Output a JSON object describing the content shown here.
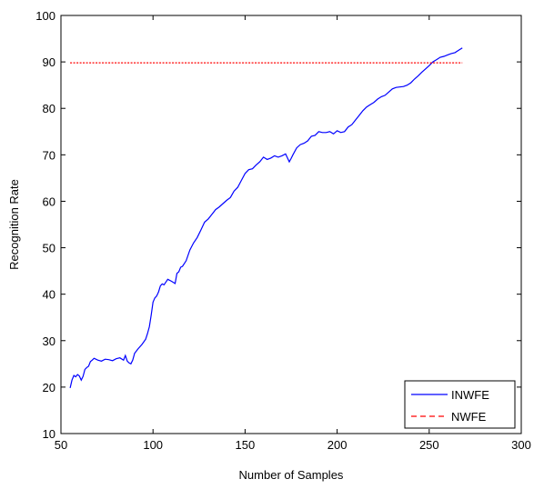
{
  "chart_data": {
    "type": "line",
    "title": "",
    "xlabel": "Number of Samples",
    "ylabel": "Recognition Rate",
    "xlim": [
      50,
      300
    ],
    "ylim": [
      10,
      100
    ],
    "xticks": [
      50,
      100,
      150,
      200,
      250,
      300
    ],
    "yticks": [
      10,
      20,
      30,
      40,
      50,
      60,
      70,
      80,
      90,
      100
    ],
    "grid": false,
    "legend_position": "bottom-right",
    "series": [
      {
        "name": "INWFE",
        "color": "#0000ff",
        "dash": "solid",
        "x": [
          55,
          56,
          57,
          58,
          59,
          60,
          61,
          62,
          63,
          64,
          65,
          66,
          67,
          68,
          70,
          72,
          74,
          76,
          78,
          80,
          82,
          84,
          85,
          86,
          87,
          88,
          89,
          90,
          92,
          94,
          96,
          97,
          98,
          99,
          100,
          101,
          102,
          103,
          104,
          105,
          106,
          108,
          110,
          112,
          113,
          114,
          115,
          116,
          118,
          120,
          122,
          124,
          126,
          128,
          130,
          132,
          134,
          136,
          138,
          140,
          142,
          144,
          146,
          148,
          150,
          152,
          154,
          156,
          158,
          160,
          162,
          164,
          166,
          168,
          170,
          172,
          174,
          175,
          176,
          178,
          180,
          182,
          184,
          186,
          188,
          190,
          192,
          194,
          196,
          198,
          200,
          202,
          204,
          206,
          208,
          210,
          212,
          214,
          216,
          218,
          220,
          222,
          224,
          226,
          228,
          230,
          232,
          234,
          236,
          238,
          240,
          242,
          244,
          246,
          248,
          250,
          252,
          254,
          256,
          258,
          260,
          262,
          264,
          266,
          268
        ],
        "values": [
          19.8,
          21.5,
          22.5,
          22.2,
          22.7,
          22.4,
          21.5,
          22.3,
          23.8,
          24.2,
          24.5,
          25.5,
          25.8,
          26.2,
          25.8,
          25.6,
          26,
          25.9,
          25.7,
          26.1,
          26.3,
          25.8,
          26.8,
          25.6,
          25.2,
          25,
          25.8,
          27.3,
          28.3,
          29.2,
          30.3,
          31.5,
          33,
          35.5,
          38.3,
          39.2,
          39.6,
          40.5,
          41.8,
          42.2,
          42,
          43.2,
          42.8,
          42.3,
          44.5,
          44.8,
          45.8,
          46,
          47.2,
          49.5,
          51,
          52.2,
          53.8,
          55.5,
          56.2,
          57.2,
          58.2,
          58.8,
          59.5,
          60.2,
          60.8,
          62.2,
          63,
          64.5,
          66,
          66.8,
          67,
          67.8,
          68.5,
          69.5,
          69,
          69.3,
          69.8,
          69.5,
          69.8,
          70.2,
          68.5,
          69.2,
          70,
          71.5,
          72.2,
          72.5,
          73,
          74,
          74.2,
          75,
          74.8,
          74.8,
          75,
          74.5,
          75.2,
          74.8,
          75,
          76,
          76.5,
          77.5,
          78.5,
          79.5,
          80.3,
          80.8,
          81.3,
          82,
          82.5,
          82.8,
          83.5,
          84.2,
          84.5,
          84.6,
          84.7,
          85,
          85.5,
          86.3,
          87,
          87.8,
          88.5,
          89.2,
          90,
          90.5,
          91,
          91.2,
          91.5,
          91.8,
          92,
          92.5,
          93
        ]
      },
      {
        "name": "NWFE",
        "color": "#ff0000",
        "dash": "dashed",
        "x": [
          55,
          268
        ],
        "values": [
          89.8,
          89.8
        ]
      }
    ]
  }
}
